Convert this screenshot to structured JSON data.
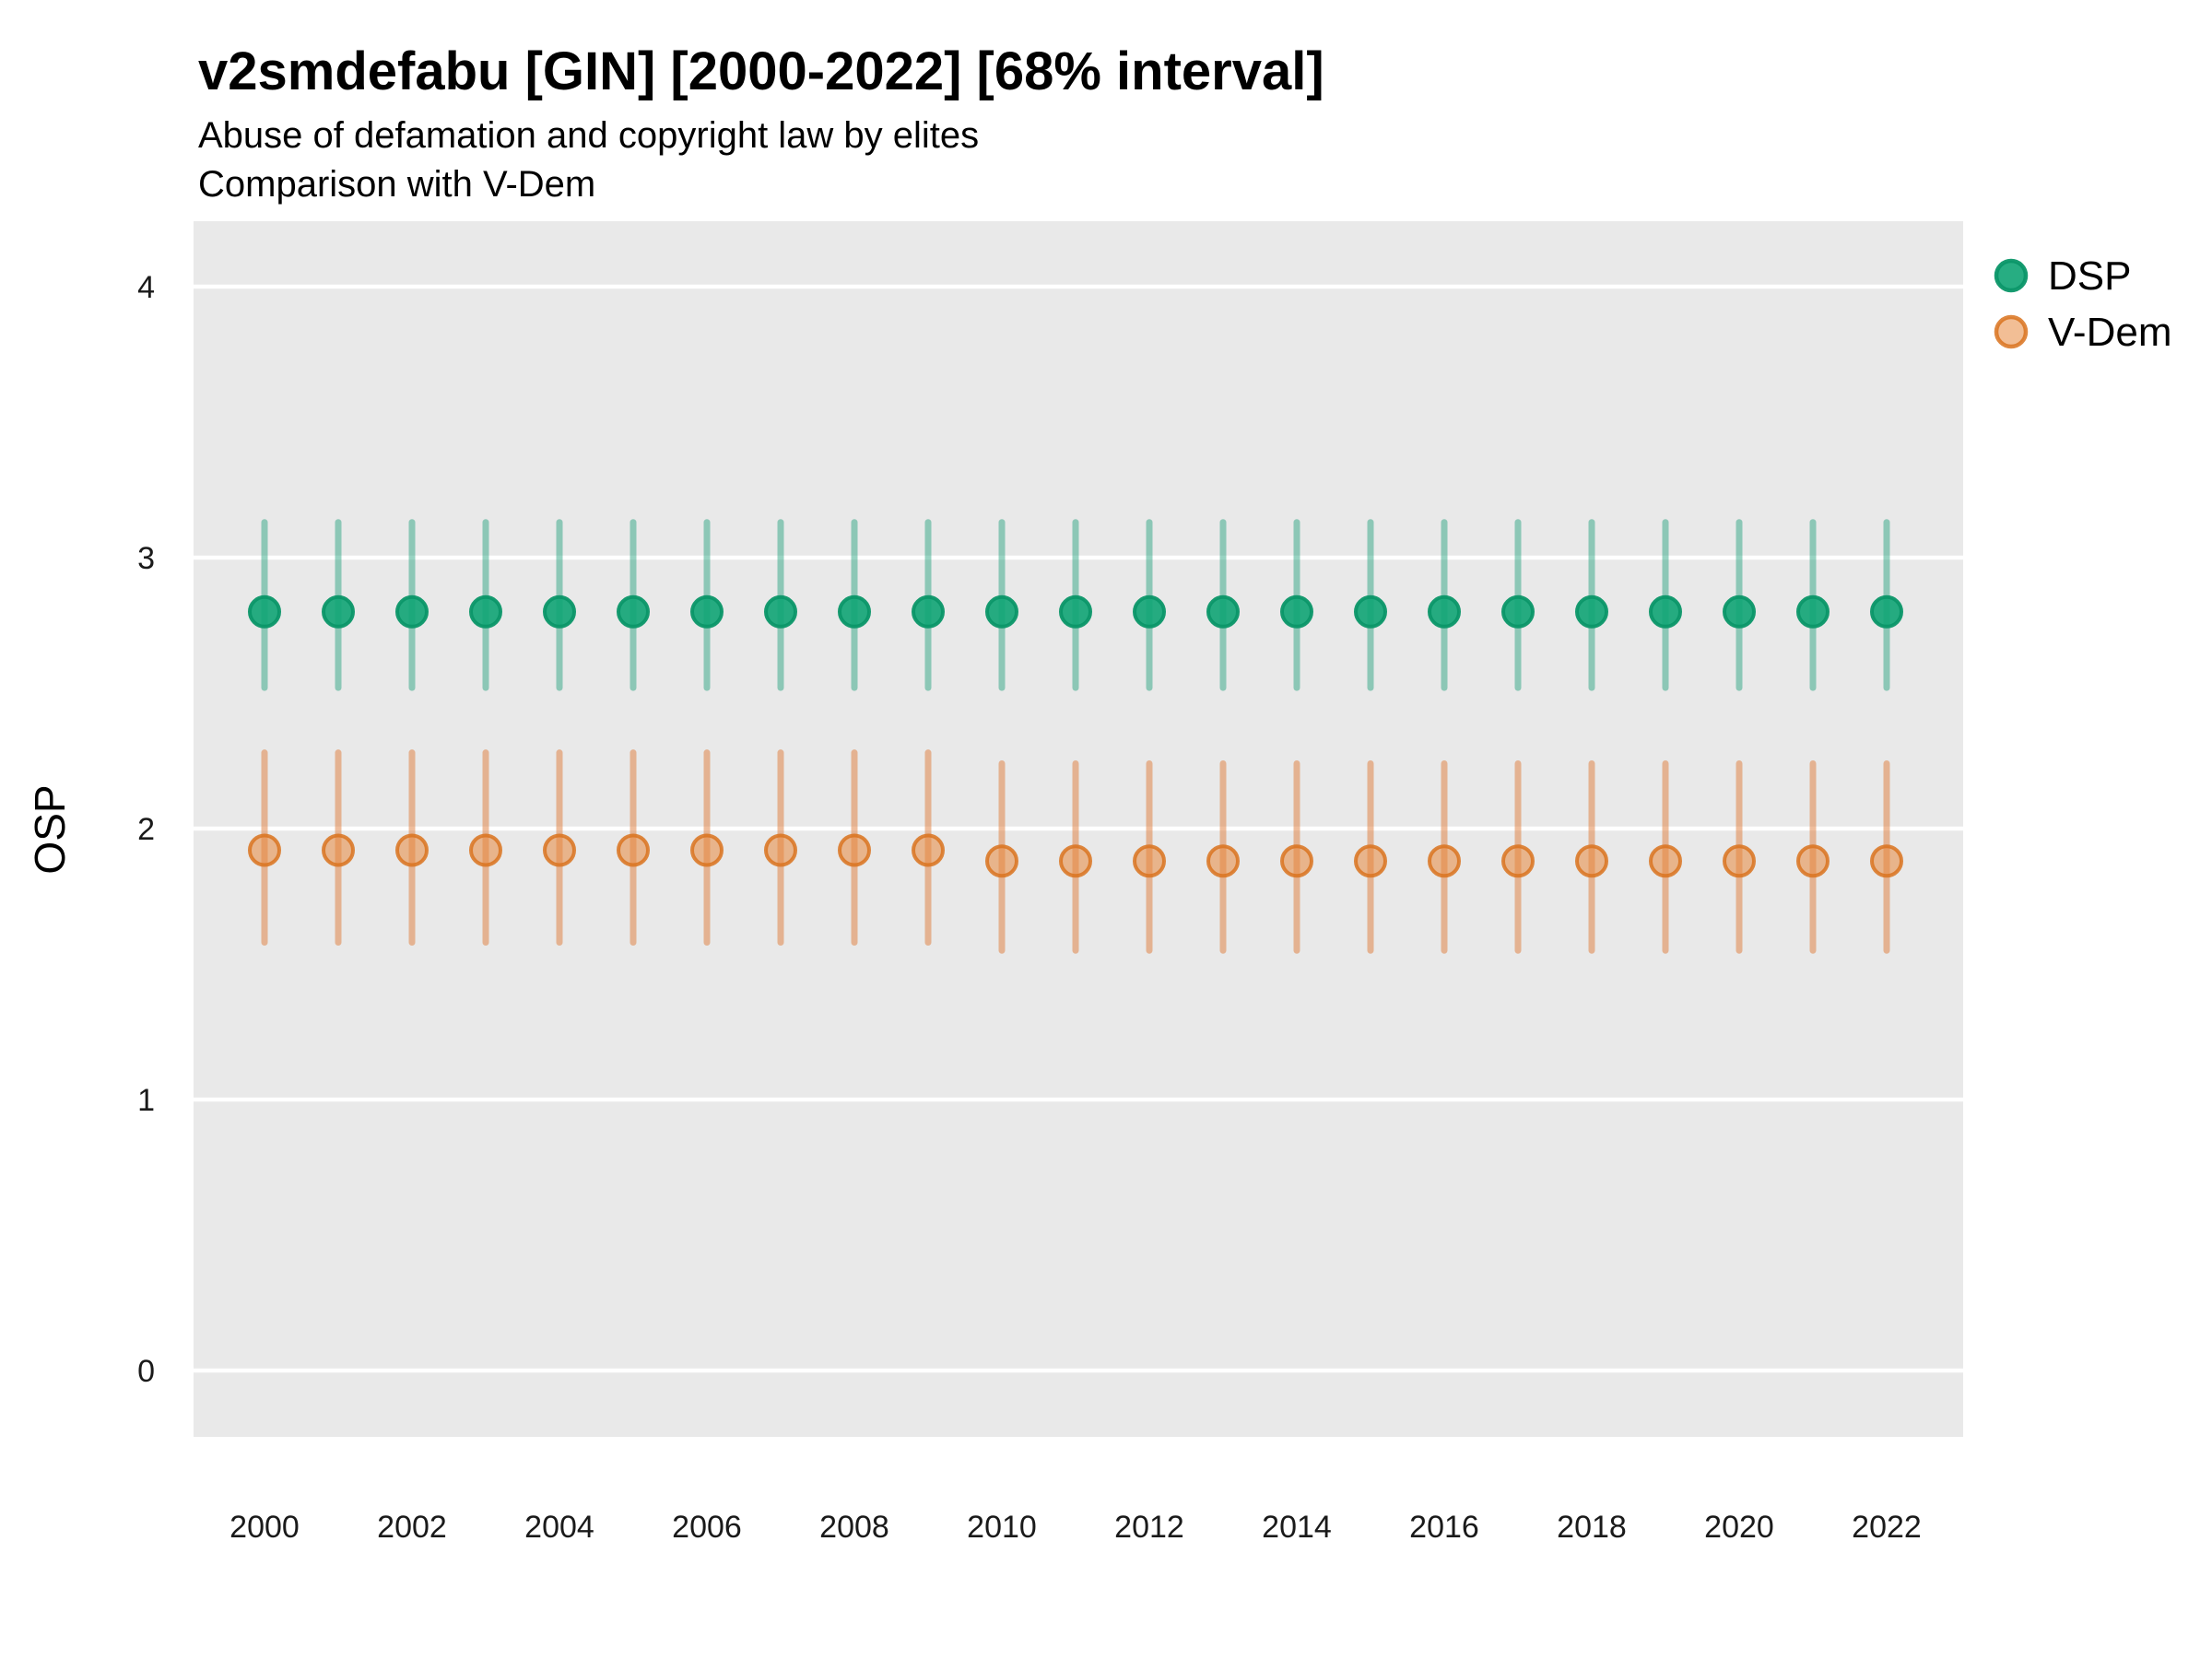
{
  "header": {
    "title": "v2smdefabu [GIN] [2000-2022] [68% interval]",
    "subtitle_line1": "Abuse of defamation and copyright law by elites",
    "subtitle_line2": "Comparison with V-Dem"
  },
  "colors": {
    "panel_bg": "#e9e9e9",
    "grid": "#ffffff",
    "dsp_point": "#10a474",
    "dsp_point_stroke": "#0b9668",
    "dsp_interval": "#1b9e77",
    "vdem_point": "#e8883e",
    "vdem_point_stroke": "#d9731f",
    "vdem_interval": "#e07b39"
  },
  "chart_data": {
    "type": "scatter",
    "title": "v2smdefabu [GIN] [2000-2022] [68% interval]",
    "subtitle_lines": [
      "Abuse of defamation and copyright law by elites",
      "Comparison with V-Dem"
    ],
    "xlabel": "",
    "ylabel": "OSP",
    "interval_label": "68% interval",
    "country": "GIN",
    "grid": true,
    "legend_position": "right",
    "ylim": [
      -0.25,
      4.25
    ],
    "yticks": [
      0,
      1,
      2,
      3,
      4
    ],
    "xticks": [
      2000,
      2002,
      2004,
      2006,
      2008,
      2010,
      2012,
      2014,
      2016,
      2018,
      2020,
      2022
    ],
    "x": [
      2000,
      2001,
      2002,
      2003,
      2004,
      2005,
      2006,
      2007,
      2008,
      2009,
      2010,
      2011,
      2012,
      2013,
      2014,
      2015,
      2016,
      2017,
      2018,
      2019,
      2020,
      2021,
      2022
    ],
    "series": [
      {
        "name": "DSP",
        "est": [
          2.8,
          2.8,
          2.8,
          2.8,
          2.8,
          2.8,
          2.8,
          2.8,
          2.8,
          2.8,
          2.8,
          2.8,
          2.8,
          2.8,
          2.8,
          2.8,
          2.8,
          2.8,
          2.8,
          2.8,
          2.8,
          2.8,
          2.8
        ],
        "lo": [
          2.52,
          2.52,
          2.52,
          2.52,
          2.52,
          2.52,
          2.52,
          2.52,
          2.52,
          2.52,
          2.52,
          2.52,
          2.52,
          2.52,
          2.52,
          2.52,
          2.52,
          2.52,
          2.52,
          2.52,
          2.52,
          2.52,
          2.52
        ],
        "hi": [
          3.13,
          3.13,
          3.13,
          3.13,
          3.13,
          3.13,
          3.13,
          3.13,
          3.13,
          3.13,
          3.13,
          3.13,
          3.13,
          3.13,
          3.13,
          3.13,
          3.13,
          3.13,
          3.13,
          3.13,
          3.13,
          3.13,
          3.13
        ],
        "point_color": "#10a474",
        "point_stroke": "#0b9668",
        "interval_color": "#1b9e77",
        "point_opacity": 0.9,
        "stroke_opacity": 0.95,
        "interval_opacity": 0.45
      },
      {
        "name": "V-Dem",
        "est": [
          1.92,
          1.92,
          1.92,
          1.92,
          1.92,
          1.92,
          1.92,
          1.92,
          1.92,
          1.92,
          1.88,
          1.88,
          1.88,
          1.88,
          1.88,
          1.88,
          1.88,
          1.88,
          1.88,
          1.88,
          1.88,
          1.88,
          1.88
        ],
        "lo": [
          1.58,
          1.58,
          1.58,
          1.58,
          1.58,
          1.58,
          1.58,
          1.58,
          1.58,
          1.58,
          1.55,
          1.55,
          1.55,
          1.55,
          1.55,
          1.55,
          1.55,
          1.55,
          1.55,
          1.55,
          1.55,
          1.55,
          1.55
        ],
        "hi": [
          2.28,
          2.28,
          2.28,
          2.28,
          2.28,
          2.28,
          2.28,
          2.28,
          2.28,
          2.28,
          2.24,
          2.24,
          2.24,
          2.24,
          2.24,
          2.24,
          2.24,
          2.24,
          2.24,
          2.24,
          2.24,
          2.24,
          2.24
        ],
        "point_color": "#e8883e",
        "point_stroke": "#d9731f",
        "interval_color": "#e07b39",
        "point_opacity": 0.55,
        "stroke_opacity": 0.85,
        "interval_opacity": 0.5
      }
    ]
  }
}
